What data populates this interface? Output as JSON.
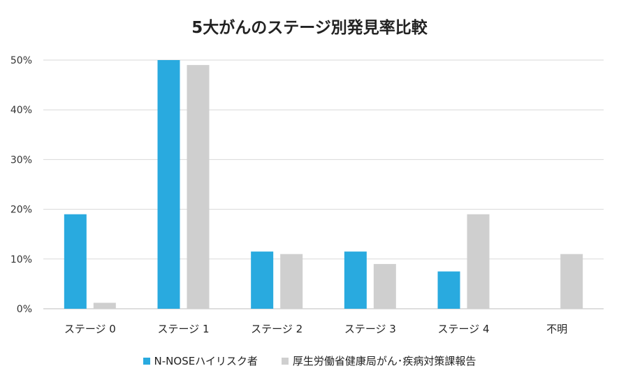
{
  "chart_data": {
    "type": "bar",
    "title": "5大がんのステージ別発見率比較",
    "categories": [
      "ステージ 0",
      "ステージ 1",
      "ステージ 2",
      "ステージ 3",
      "ステージ 4",
      "不明"
    ],
    "series": [
      {
        "name": "N-NOSEハイリスク者",
        "color": "#29aadf",
        "values": [
          19,
          50,
          11.5,
          11.5,
          7.5,
          0
        ]
      },
      {
        "name": "厚生労働省健康局がん･疾病対策課報告",
        "color": "#cfcfcf",
        "values": [
          1.2,
          49,
          11,
          9,
          19,
          11
        ]
      }
    ],
    "ylim": [
      0,
      50
    ],
    "yticks": [
      0,
      10,
      20,
      30,
      40,
      50
    ],
    "ytick_labels": [
      "0%",
      "10%",
      "20%",
      "30%",
      "40%",
      "50%"
    ],
    "xlabel": "",
    "ylabel": "",
    "grid": true,
    "legend_position": "bottom"
  }
}
